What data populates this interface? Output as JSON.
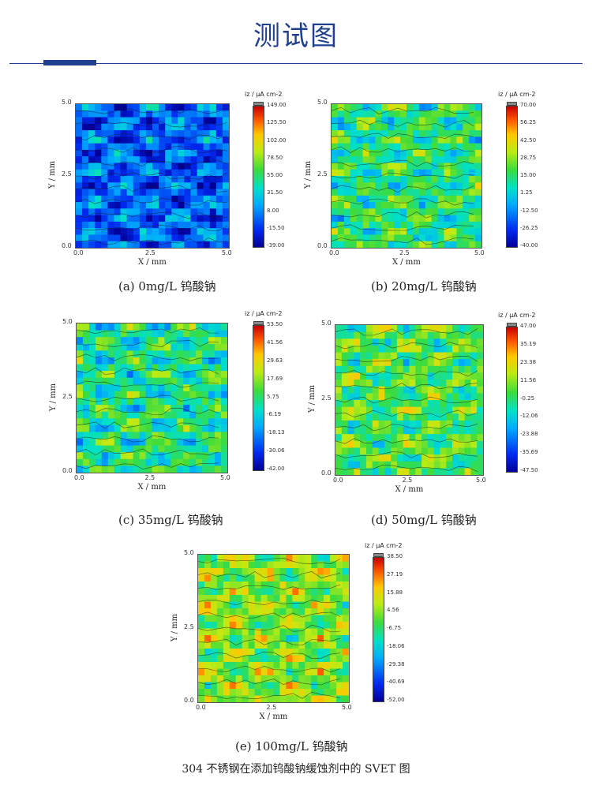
{
  "page": {
    "title": "测试图",
    "footer": "304 不锈钢在添加钨酸钠缓蚀剂中的 SVET 图"
  },
  "chart_data": [
    {
      "type": "heatmap",
      "caption": "(a)  0mg/L  钨酸钠",
      "xlabel": "X / mm",
      "ylabel": "Y / mm",
      "xlim": [
        0.0,
        5.0
      ],
      "ylim": [
        0.0,
        5.0
      ],
      "xticks": [
        "0.0",
        "2.5",
        "5.0"
      ],
      "yticks": [
        "0.0",
        "2.5",
        "5.0"
      ],
      "colorbar_title": "iz / μA cm-2",
      "colorbar_ticks": [
        "149.00",
        "125.50",
        "102.00",
        "78.50",
        "55.00",
        "31.50",
        "8.00",
        "-15.50",
        "-39.00"
      ],
      "range": [
        -39.0,
        149.0
      ],
      "bias": 0.2
    },
    {
      "type": "heatmap",
      "caption": "(b)  20mg/L  钨酸钠",
      "xlabel": "X / mm",
      "ylabel": "Y / mm",
      "xlim": [
        0.0,
        5.0
      ],
      "ylim": [
        0.0,
        5.0
      ],
      "xticks": [
        "0.0",
        "2.5",
        "5.0"
      ],
      "yticks": [
        "0.0",
        "2.5",
        "5.0"
      ],
      "colorbar_title": "iz / μA cm-2",
      "colorbar_ticks": [
        "70.00",
        "56.25",
        "42.50",
        "28.75",
        "15.00",
        "1.25",
        "-12.50",
        "-26.25",
        "-40.00"
      ],
      "range": [
        -40.0,
        70.0
      ],
      "bias": 0.5
    },
    {
      "type": "heatmap",
      "caption": "(c)  35mg/L  钨酸钠",
      "xlabel": "X / mm",
      "ylabel": "Y / mm",
      "xlim": [
        0.0,
        5.0
      ],
      "ylim": [
        0.0,
        5.0
      ],
      "xticks": [
        "0.0",
        "2.5",
        "5.0"
      ],
      "yticks": [
        "0.0",
        "2.5",
        "5.0"
      ],
      "colorbar_title": "iz / μA cm-2",
      "colorbar_ticks": [
        "53.50",
        "41.56",
        "29.63",
        "17.69",
        "5.75",
        "-6.19",
        "-18.13",
        "-30.06",
        "-42.00"
      ],
      "range": [
        -42.0,
        53.5
      ],
      "bias": 0.48
    },
    {
      "type": "heatmap",
      "caption": "(d)  50mg/L  钨酸钠",
      "xlabel": "X / mm",
      "ylabel": "Y / mm",
      "xlim": [
        0.0,
        5.0
      ],
      "ylim": [
        0.0,
        5.0
      ],
      "xticks": [
        "0.0",
        "2.5",
        "5.0"
      ],
      "yticks": [
        "0.0",
        "2.5",
        "5.0"
      ],
      "colorbar_title": "iz / μA cm-2",
      "colorbar_ticks": [
        "47.00",
        "35.19",
        "23.38",
        "11.56",
        "-0.25",
        "-12.06",
        "-23.88",
        "-35.69",
        "-47.50"
      ],
      "range": [
        -47.5,
        47.0
      ],
      "bias": 0.55
    },
    {
      "type": "heatmap",
      "caption": "(e)  100mg/L  钨酸钠",
      "xlabel": "X / mm",
      "ylabel": "Y / mm",
      "xlim": [
        0.0,
        5.0
      ],
      "ylim": [
        0.0,
        5.0
      ],
      "xticks": [
        "0.0",
        "2.5",
        "5.0"
      ],
      "yticks": [
        "0.0",
        "2.5",
        "5.0"
      ],
      "colorbar_title": "iz / μA cm-2",
      "colorbar_ticks": [
        "38.50",
        "27.19",
        "15.88",
        "4.56",
        "-6.75",
        "-18.06",
        "-29.38",
        "-40.69",
        "-52.00"
      ],
      "range": [
        -52.0,
        38.5
      ],
      "bias": 0.62
    }
  ]
}
